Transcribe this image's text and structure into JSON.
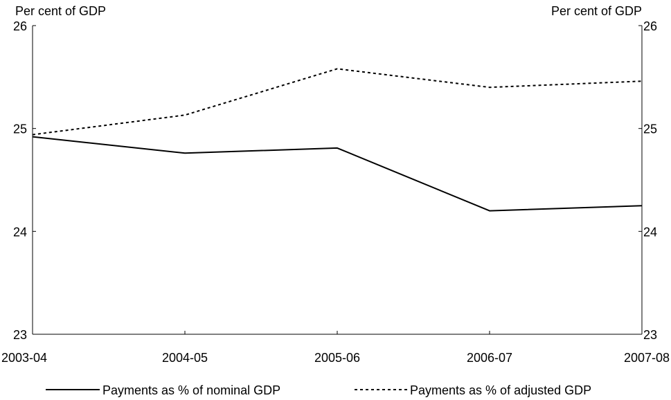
{
  "chart_data": {
    "type": "line",
    "title": "",
    "xlabel": "",
    "ylabel": "Per cent of GDP",
    "ylabel_right": "Per cent of GDP",
    "categories": [
      "2003-04",
      "2004-05",
      "2005-06",
      "2006-07",
      "2007-08"
    ],
    "ylim": [
      23,
      26
    ],
    "yticks": [
      "23",
      "24",
      "25",
      "26"
    ],
    "grid": false,
    "legend_position": "bottom",
    "series": [
      {
        "name": "Payments as % of nominal GDP",
        "values": [
          24.92,
          24.76,
          24.81,
          24.2,
          24.25
        ],
        "style": "solid",
        "color": "#000000"
      },
      {
        "name": "Payments as % of adjusted GDP",
        "values": [
          24.94,
          25.13,
          25.58,
          25.4,
          25.46
        ],
        "style": "dashed",
        "color": "#000000"
      }
    ]
  }
}
